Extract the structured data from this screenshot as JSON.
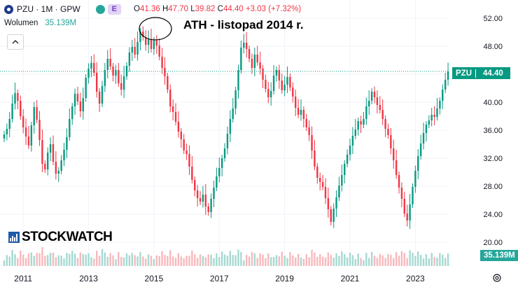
{
  "header": {
    "symbol": "PZU · 1M · GPW",
    "badge": "E",
    "open_label": "O",
    "open": "41.36",
    "high_label": "H",
    "high": "47.70",
    "low_label": "L",
    "low": "39.82",
    "close_label": "C",
    "close": "44.40",
    "change": "+3.03 (+7.32%)"
  },
  "volume_row": {
    "label": "Wolumen",
    "value": "35.139M"
  },
  "annotation": "ATH - listopad 2014 r.",
  "price_label": {
    "symbol": "PZU",
    "value": "44.40"
  },
  "volume_label": "35.139M",
  "logo_text": "STOCKWATCH",
  "colors": {
    "up": "#089981",
    "down": "#f23645",
    "up_volume": "#a6d9d2",
    "down_volume": "#f7b9bd",
    "grid": "#f0f3fa"
  },
  "chart_data": {
    "type": "candlestick",
    "title": "",
    "xlabel": "",
    "ylabel": "",
    "frequency": "monthly",
    "ylim": [
      19,
      53
    ],
    "y_ticks": [
      "52.00",
      "48.00",
      "44.00",
      "40.00",
      "36.00",
      "32.00",
      "28.00",
      "24.00",
      "20.00"
    ],
    "x_ticks": [
      "2011",
      "2013",
      "2015",
      "2017",
      "2019",
      "2021",
      "2023"
    ],
    "last_price": 44.4,
    "start": "2010-06",
    "close": [
      35.4,
      36.2,
      37.6,
      39.8,
      41.3,
      40.2,
      38.0,
      36.4,
      35.1,
      33.8,
      36.7,
      39.3,
      37.5,
      34.6,
      31.2,
      30.4,
      32.8,
      34.0,
      31.5,
      29.8,
      30.2,
      31.7,
      33.2,
      35.0,
      37.6,
      39.4,
      41.2,
      40.1,
      38.7,
      40.6,
      43.5,
      44.8,
      45.6,
      44.2,
      41.5,
      39.8,
      42.3,
      44.6,
      46.2,
      45.1,
      43.8,
      44.6,
      42.7,
      41.8,
      43.7,
      45.2,
      47.1,
      47.9,
      46.8,
      48.6,
      50.1,
      49.3,
      48.2,
      49.0,
      47.6,
      48.8,
      48.1,
      46.5,
      44.9,
      43.7,
      41.8,
      39.4,
      38.6,
      37.2,
      35.8,
      34.7,
      33.1,
      32.6,
      30.8,
      28.9,
      27.4,
      26.3,
      25.8,
      26.8,
      25.1,
      24.3,
      26.2,
      27.8,
      29.4,
      30.6,
      32.0,
      33.4,
      35.5,
      37.6,
      39.1,
      41.7,
      44.6,
      47.8,
      48.5,
      47.6,
      46.2,
      44.9,
      46.8,
      45.7,
      44.8,
      43.2,
      41.9,
      40.7,
      41.6,
      43.8,
      44.6,
      43.1,
      41.7,
      42.5,
      43.6,
      42.1,
      40.8,
      39.2,
      38.2,
      38.9,
      37.6,
      36.4,
      35.3,
      33.1,
      30.8,
      29.2,
      28.6,
      27.9,
      26.3,
      24.7,
      22.9,
      24.8,
      26.4,
      28.1,
      29.6,
      31.2,
      32.5,
      33.8,
      35.2,
      36.1,
      37.3,
      36.8,
      37.6,
      39.4,
      40.2,
      41.5,
      40.7,
      39.6,
      38.9,
      37.6,
      36.2,
      35.3,
      33.4,
      31.7,
      29.6,
      27.8,
      26.2,
      24.1,
      23.1,
      25.4,
      27.9,
      30.2,
      32.3,
      34.1,
      35.6,
      36.8,
      37.4,
      38.2,
      37.9,
      39.1,
      40.2,
      41.8,
      43.2,
      44.4
    ]
  }
}
